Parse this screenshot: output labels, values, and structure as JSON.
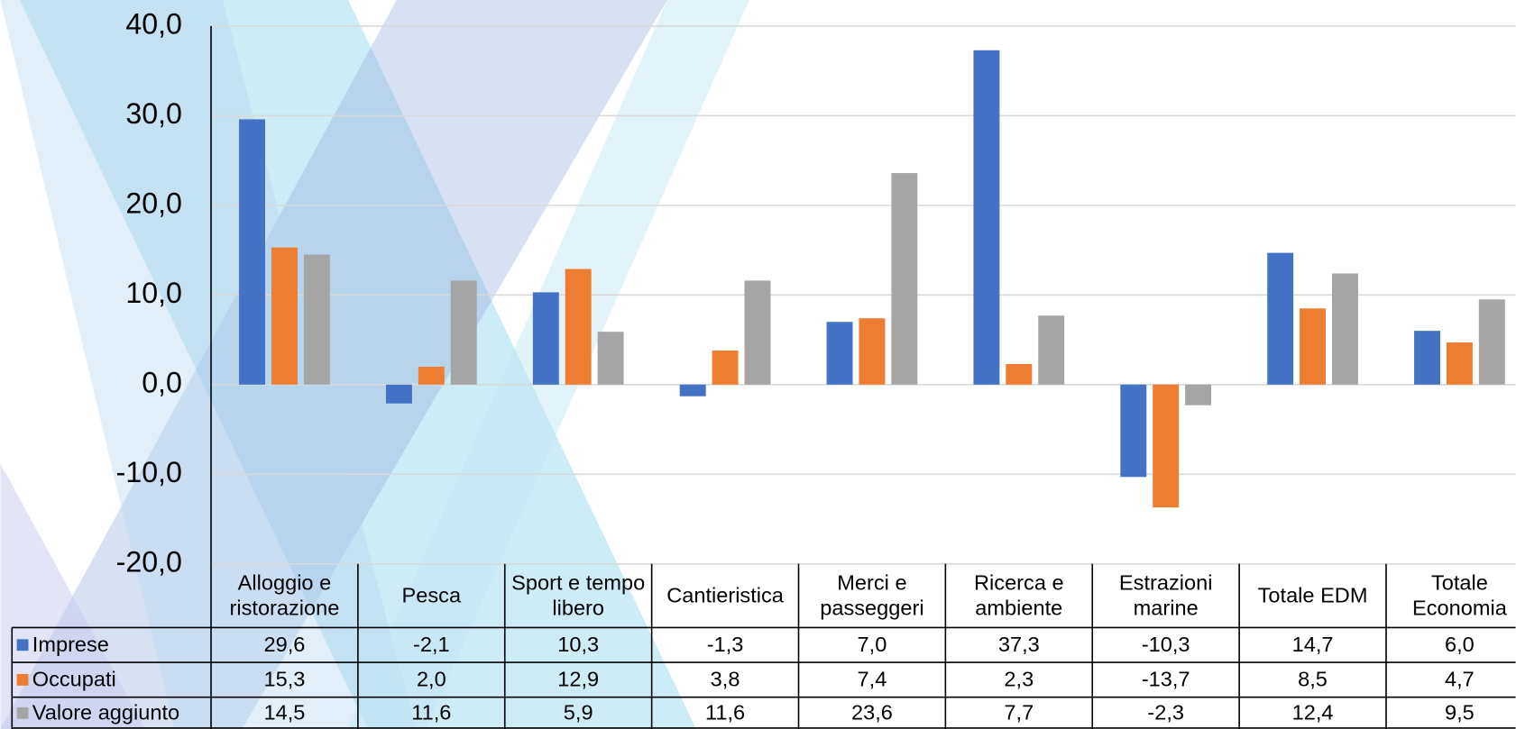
{
  "chart_data": {
    "type": "bar",
    "categories": [
      "Alloggio e ristorazione",
      "Pesca",
      "Sport e tempo libero",
      "Cantieristica",
      "Merci e passeggeri",
      "Ricerca e ambiente",
      "Estrazioni marine",
      "Totale EDM",
      "Totale Economia"
    ],
    "series": [
      {
        "name": "Imprese",
        "color": "#4472c4",
        "values": [
          29.6,
          -2.1,
          10.3,
          -1.3,
          7.0,
          37.3,
          -10.3,
          14.7,
          6.0
        ],
        "value_labels": [
          "29,6",
          "-2,1",
          "10,3",
          "-1,3",
          "7,0",
          "37,3",
          "-10,3",
          "14,7",
          "6,0"
        ]
      },
      {
        "name": "Occupati",
        "color": "#ed7d31",
        "values": [
          15.3,
          2.0,
          12.9,
          3.8,
          7.4,
          2.3,
          -13.7,
          8.5,
          4.7
        ],
        "value_labels": [
          "15,3",
          "2,0",
          "12,9",
          "3,8",
          "7,4",
          "2,3",
          "-13,7",
          "8,5",
          "4,7"
        ]
      },
      {
        "name": "Valore aggiunto",
        "color": "#a5a5a5",
        "values": [
          14.5,
          11.6,
          5.9,
          11.6,
          23.6,
          7.7,
          -2.3,
          12.4,
          9.5
        ],
        "value_labels": [
          "14,5",
          "11,6",
          "5,9",
          "11,6",
          "23,6",
          "7,7",
          "-2,3",
          "12,4",
          "9,5"
        ]
      }
    ],
    "ylim": [
      -20,
      40
    ],
    "yticks": [
      {
        "value": -20,
        "label": "-20,0"
      },
      {
        "value": -10,
        "label": "-10,0"
      },
      {
        "value": 0,
        "label": "0,0"
      },
      {
        "value": 10,
        "label": "10,0"
      },
      {
        "value": 20,
        "label": "20,0"
      },
      {
        "value": 30,
        "label": "30,0"
      },
      {
        "value": 40,
        "label": "40,0"
      }
    ],
    "grid": true
  }
}
